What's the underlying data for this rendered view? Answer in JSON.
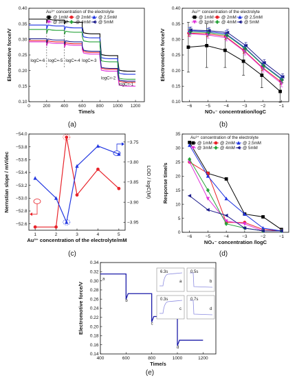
{
  "figure": {
    "captions": [
      "(a)",
      "(b)",
      "(c)",
      "(d)",
      "(e)"
    ]
  },
  "chart_data": [
    {
      "panel": "a",
      "type": "line",
      "xlabel": "Time/s",
      "ylabel": "Electromotive force/V",
      "xlim": [
        0,
        1300
      ],
      "ylim": [
        0.1,
        0.4
      ],
      "xticks": [
        0,
        200,
        400,
        600,
        800,
        1000,
        1200
      ],
      "yticks": [
        0.1,
        0.15,
        0.2,
        0.25,
        0.3,
        0.35,
        0.4
      ],
      "legend_title": "Au³⁺ concentration of the electrolyte",
      "step_bounds": [
        0,
        200,
        400,
        600,
        800,
        1000,
        1200
      ],
      "annotations": [
        {
          "text": "logC=-6",
          "x": 100,
          "y": 0.228
        },
        {
          "text": "logC=-5",
          "x": 300,
          "y": 0.228
        },
        {
          "text": "logC=-4",
          "x": 495,
          "y": 0.228
        },
        {
          "text": "logC=-3",
          "x": 680,
          "y": 0.228
        },
        {
          "text": "logC=-2",
          "x": 895,
          "y": 0.172
        },
        {
          "text": "logC=-1",
          "x": 1095,
          "y": 0.152
        }
      ],
      "series": [
        {
          "name": "@ 1mM",
          "color": "#000000",
          "marker": "square",
          "levels": [
            0.365,
            0.362,
            0.355,
            0.318,
            0.248,
            0.198
          ]
        },
        {
          "name": "@ 2mM",
          "color": "#e8232a",
          "marker": "circle",
          "levels": [
            0.296,
            0.292,
            0.286,
            0.258,
            0.204,
            0.162
          ]
        },
        {
          "name": "@ 2.5mM",
          "color": "#2035e0",
          "marker": "triangle",
          "levels": [
            0.346,
            0.343,
            0.337,
            0.305,
            0.238,
            0.188
          ]
        },
        {
          "name": "@ 3mM",
          "color": "#e030d8",
          "marker": "tri-down",
          "levels": [
            0.292,
            0.287,
            0.281,
            0.253,
            0.198,
            0.15
          ]
        },
        {
          "name": "@ 4mM",
          "color": "#27a33a",
          "marker": "diamond",
          "levels": [
            0.332,
            0.329,
            0.323,
            0.292,
            0.228,
            0.172
          ]
        },
        {
          "name": "@ 5mM",
          "color": "#1a1a8a",
          "marker": "tri-left",
          "levels": [
            0.302,
            0.298,
            0.292,
            0.262,
            0.207,
            0.166
          ]
        }
      ]
    },
    {
      "panel": "b",
      "type": "line",
      "xlabel": "NO₃⁻ concentration/logC",
      "ylabel": "Electromotive force/V",
      "xlim": [
        -6.4,
        -0.6
      ],
      "ylim": [
        0.1,
        0.4
      ],
      "xticks": [
        -6,
        -5,
        -4,
        -3,
        -2,
        -1
      ],
      "yticks": [
        0.1,
        0.15,
        0.2,
        0.25,
        0.3,
        0.35,
        0.4
      ],
      "legend_title": "Au³⁺ concentration of the electrolyte",
      "x": [
        -6,
        -5,
        -4,
        -3,
        -2,
        -1
      ],
      "series": [
        {
          "name": "@ 1mM",
          "color": "#000000",
          "marker": "square",
          "values": [
            0.275,
            0.28,
            0.265,
            0.23,
            0.185,
            0.133
          ],
          "err": [
            0.08,
            0.07,
            0.055,
            0.045,
            0.04,
            0.035
          ]
        },
        {
          "name": "@ 2mM",
          "color": "#e8232a",
          "marker": "circle",
          "values": [
            0.32,
            0.318,
            0.31,
            0.265,
            0.21,
            0.165
          ],
          "err": [
            0.01,
            0.01,
            0.01,
            0.01,
            0.01,
            0.01
          ]
        },
        {
          "name": "@ 2.5mM",
          "color": "#2035e0",
          "marker": "triangle",
          "values": [
            0.328,
            0.325,
            0.318,
            0.275,
            0.22,
            0.175
          ],
          "err": [
            0.01,
            0.01,
            0.01,
            0.01,
            0.01,
            0.01
          ]
        },
        {
          "name": "@ 3mM",
          "color": "#e030d8",
          "marker": "tri-down",
          "values": [
            0.318,
            0.314,
            0.305,
            0.26,
            0.205,
            0.158
          ],
          "err": [
            0.01,
            0.01,
            0.01,
            0.01,
            0.01,
            0.01
          ]
        },
        {
          "name": "@ 4mM",
          "color": "#27a33a",
          "marker": "diamond",
          "values": [
            0.324,
            0.322,
            0.313,
            0.27,
            0.215,
            0.17
          ],
          "err": [
            0.01,
            0.01,
            0.01,
            0.01,
            0.01,
            0.01
          ]
        },
        {
          "name": "@ 5mM",
          "color": "#1a1a8a",
          "marker": "tri-left",
          "values": [
            0.33,
            0.328,
            0.322,
            0.28,
            0.225,
            0.18
          ],
          "err": [
            0.01,
            0.01,
            0.01,
            0.01,
            0.01,
            0.01
          ]
        }
      ]
    },
    {
      "panel": "c",
      "type": "line",
      "xlabel": "Au³⁺ concentration of the electrolyte/mM",
      "ylabel": "Nernstian slope / mV/dec",
      "y2label": "LOD / logC(M)",
      "xlim": [
        0.7,
        5.3
      ],
      "ylim": [
        -52.5,
        -54.0
      ],
      "y2lim": [
        -3.97,
        -3.73
      ],
      "xticks": [
        1,
        2,
        3,
        4,
        5
      ],
      "yticks": [
        -52.6,
        -52.8,
        -53.0,
        -53.2,
        -53.4,
        -53.6,
        -53.8,
        -54.0
      ],
      "y2ticks": [
        -3.95,
        -3.9,
        -3.85,
        -3.8,
        -3.75
      ],
      "x": [
        1,
        2,
        2.5,
        3,
        4,
        5
      ],
      "series": [
        {
          "axis": "left",
          "color": "#e8232a",
          "values": [
            -52.55,
            -52.55,
            -53.95,
            -53.05,
            -53.45,
            -53.15
          ]
        },
        {
          "axis": "right",
          "color": "#2035e0",
          "values": [
            -3.84,
            -3.89,
            -3.95,
            -3.81,
            -3.76,
            -3.78
          ]
        }
      ]
    },
    {
      "panel": "d",
      "type": "line",
      "xlabel": "NO₃⁻ concentration /logC",
      "ylabel": "Response time/s",
      "xlim": [
        -6.4,
        -0.6
      ],
      "ylim": [
        0,
        35
      ],
      "xticks": [
        -6,
        -5,
        -4,
        -3,
        -2,
        -1
      ],
      "yticks": [
        0,
        5,
        10,
        15,
        20,
        25,
        30,
        35
      ],
      "legend_title": "Au³⁺ concentration of the electrolyte",
      "x": [
        -6,
        -5,
        -4,
        -3,
        -2,
        -1
      ],
      "series": [
        {
          "name": "@ 1mM",
          "color": "#000000",
          "marker": "square",
          "values": [
            32,
            21,
            19,
            6.5,
            5.5,
            1
          ]
        },
        {
          "name": "@ 2mM",
          "color": "#e8232a",
          "marker": "circle",
          "values": [
            25,
            21,
            3.5,
            3.5,
            1,
            0.5
          ]
        },
        {
          "name": "@ 2.5mM",
          "color": "#2035e0",
          "marker": "triangle",
          "values": [
            31,
            20,
            12,
            6.5,
            1.5,
            0.5
          ]
        },
        {
          "name": "@ 3mM",
          "color": "#e030d8",
          "marker": "tri-down",
          "values": [
            25,
            12,
            4,
            3,
            0.5,
            0.5
          ]
        },
        {
          "name": "@ 4mM",
          "color": "#27a33a",
          "marker": "diamond",
          "values": [
            26,
            15,
            3,
            1.5,
            0.5,
            0.5
          ]
        },
        {
          "name": "@ 5mM",
          "color": "#1a1a8a",
          "marker": "tri-left",
          "values": [
            13,
            8,
            6,
            1.5,
            0.5,
            0.5
          ]
        }
      ]
    },
    {
      "panel": "e",
      "type": "line",
      "xlabel": "Time/s",
      "ylabel": "Electromotive force/V",
      "xlim": [
        400,
        1300
      ],
      "ylim": [
        0.14,
        0.34
      ],
      "xticks": [
        400,
        600,
        800,
        1000,
        1200
      ],
      "yticks": [
        0.14,
        0.16,
        0.18,
        0.2,
        0.22,
        0.24,
        0.26,
        0.28,
        0.3,
        0.32,
        0.34
      ],
      "color": "#1a1aa8",
      "steps": [
        {
          "label": "a",
          "from": 400,
          "to": 600,
          "level": 0.315
        },
        {
          "label": "b",
          "from": 600,
          "to": 800,
          "level": 0.272
        },
        {
          "label": "c",
          "from": 800,
          "to": 1000,
          "level": 0.222
        },
        {
          "label": "d",
          "from": 1000,
          "to": 1200,
          "level": 0.17
        }
      ],
      "insets": [
        {
          "label": "a",
          "time_label": "6.3s",
          "kind": "rise"
        },
        {
          "label": "b",
          "time_label": "0.5s",
          "kind": "drop"
        },
        {
          "label": "c",
          "time_label": "0.3s",
          "kind": "rise"
        },
        {
          "label": "d",
          "time_label": "0.7s",
          "kind": "drop"
        }
      ]
    }
  ]
}
